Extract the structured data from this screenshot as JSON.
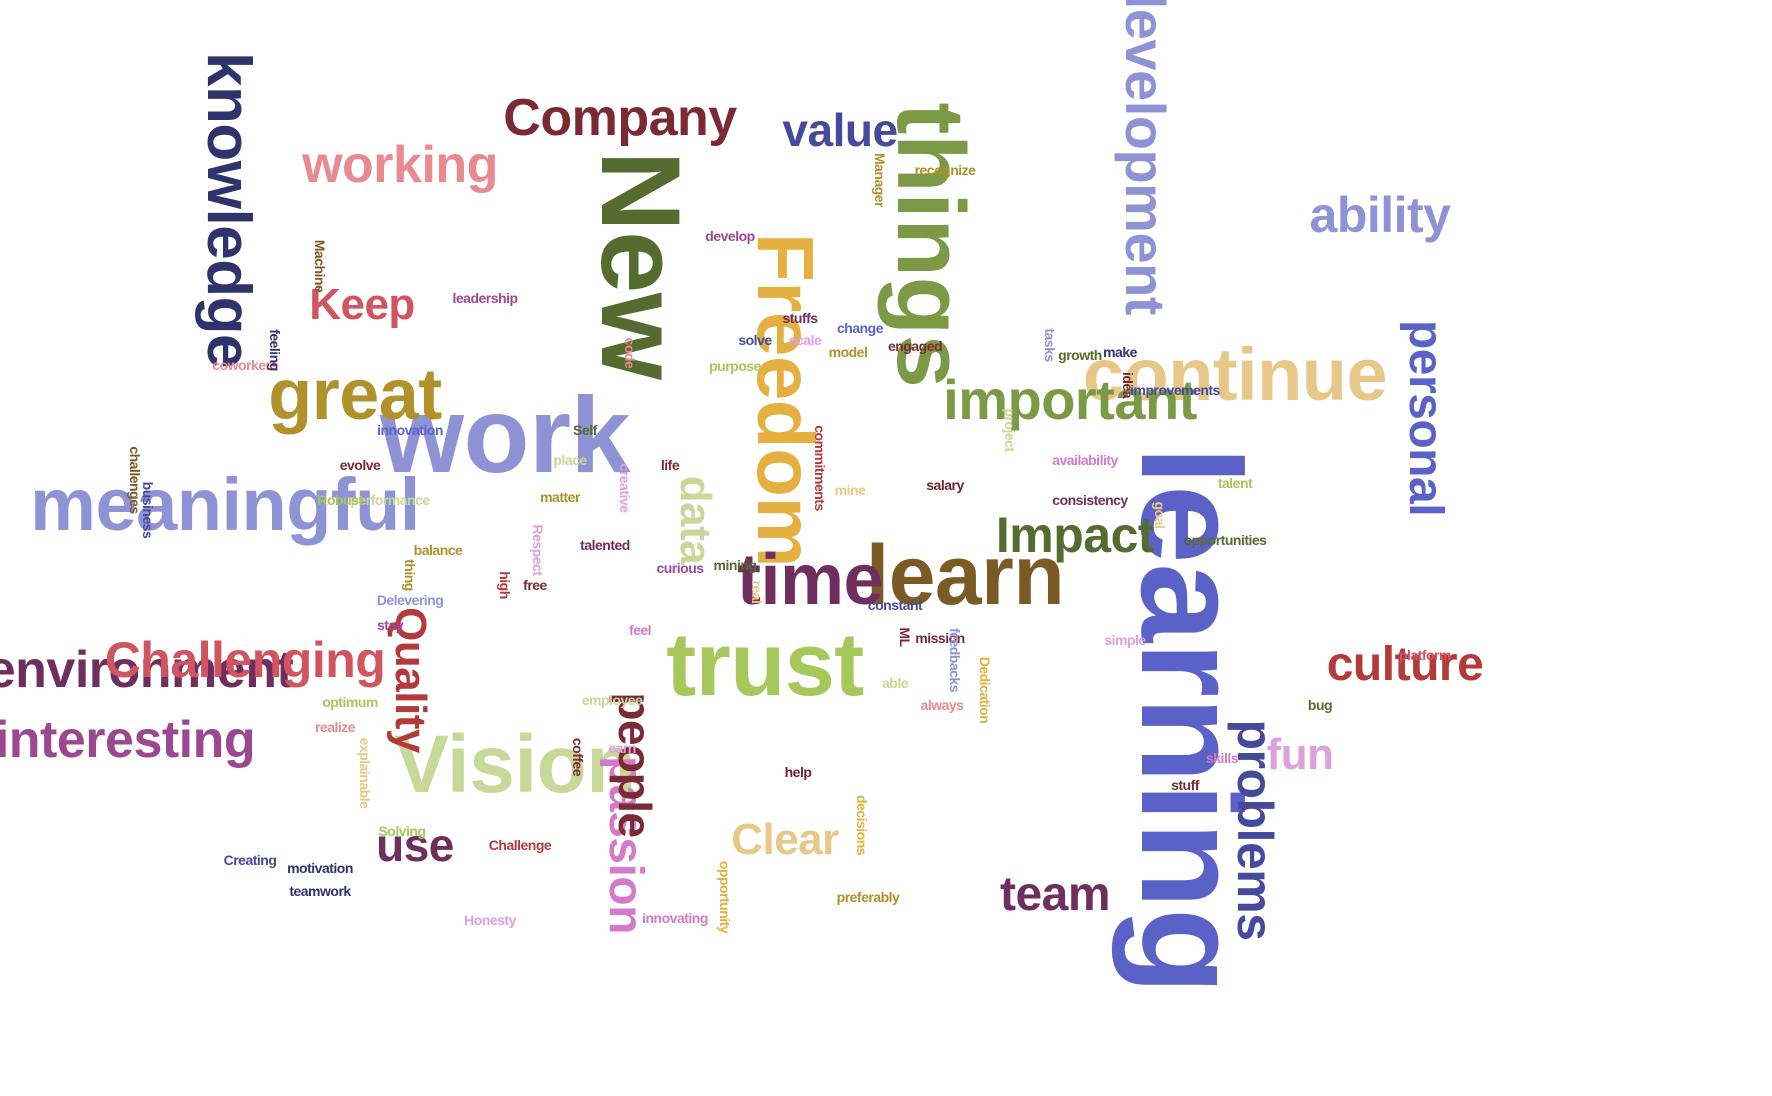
{
  "colors": {
    "background": "#ffffff",
    "navy": "#2f336b",
    "wine": "#7a2a35",
    "olive": "#556b2f",
    "oliveLight": "#7c9a45",
    "green": "#a6c85a",
    "paleGreen": "#c8d898",
    "periwinkle": "#8f93d6",
    "blue": "#5a62c8",
    "indigo": "#464a9a",
    "tan": "#e8c888",
    "gold": "#e5b040",
    "mustard": "#b0912a",
    "brown": "#7c5a25",
    "red": "#d05560",
    "pink": "#e88a90",
    "plum": "#6e2f5e",
    "magenta": "#9c4890",
    "orchid": "#d47ac8",
    "lilac": "#e0a0dc",
    "crimson": "#b23a3a",
    "darkMaroon": "#6b2430"
  },
  "words": [
    {
      "text": "learning",
      "color": "#5a62c8"
    },
    {
      "text": "New",
      "color": "#556b2f"
    },
    {
      "text": "work",
      "color": "#8f93d6"
    },
    {
      "text": "things",
      "color": "#7c9a45"
    },
    {
      "text": "Freedom",
      "color": "#e5b040"
    },
    {
      "text": "learn",
      "color": "#7c5a25"
    },
    {
      "text": "trust",
      "color": "#a6c85a"
    },
    {
      "text": "Vision",
      "color": "#c8d898"
    },
    {
      "text": "time",
      "color": "#6e2f5e"
    },
    {
      "text": "meaningful",
      "color": "#8f93d6"
    },
    {
      "text": "continue",
      "color": "#e8c888"
    },
    {
      "text": "important",
      "color": "#7c9a45"
    },
    {
      "text": "great",
      "color": "#b0912a"
    },
    {
      "text": "development",
      "color": "#8f93d6"
    },
    {
      "text": "knowledge",
      "color": "#2f336b"
    },
    {
      "text": "Company",
      "color": "#7a2a35"
    },
    {
      "text": "working",
      "color": "#e88a90"
    },
    {
      "text": "environment",
      "color": "#6e2f5e"
    },
    {
      "text": "interesting",
      "color": "#9c4890"
    },
    {
      "text": "Challenging",
      "color": "#d05560"
    },
    {
      "text": "Impact",
      "color": "#556b2f"
    },
    {
      "text": "problems",
      "color": "#464a9a"
    },
    {
      "text": "personal",
      "color": "#5a62c8"
    },
    {
      "text": "culture",
      "color": "#b23a3a"
    },
    {
      "text": "ability",
      "color": "#8f93d6"
    },
    {
      "text": "passion",
      "color": "#d47ac8"
    },
    {
      "text": "people",
      "color": "#7a2a35"
    },
    {
      "text": "Quality",
      "color": "#b23a3a"
    },
    {
      "text": "Clear",
      "color": "#e8c888"
    },
    {
      "text": "data",
      "color": "#c8d898"
    },
    {
      "text": "team",
      "color": "#6e2f5e"
    },
    {
      "text": "value",
      "color": "#464a9a"
    },
    {
      "text": "Keep",
      "color": "#d05560"
    },
    {
      "text": "use",
      "color": "#6e2f5e"
    },
    {
      "text": "fun",
      "color": "#e0a0dc"
    },
    {
      "text": "Manager",
      "color": "#b0912a"
    },
    {
      "text": "recognize",
      "color": "#b0912a"
    },
    {
      "text": "develop",
      "color": "#9c4890"
    },
    {
      "text": "Machine",
      "color": "#7c5a25"
    },
    {
      "text": "leadership",
      "color": "#9c4890"
    },
    {
      "text": "stuffs",
      "color": "#6e2f5e"
    },
    {
      "text": "scale",
      "color": "#e0a0dc"
    },
    {
      "text": "change",
      "color": "#5a62c8"
    },
    {
      "text": "engaged",
      "color": "#7a2a35"
    },
    {
      "text": "solve",
      "color": "#464a9a"
    },
    {
      "text": "code",
      "color": "#e88a90"
    },
    {
      "text": "purpose",
      "color": "#a6c85a"
    },
    {
      "text": "model",
      "color": "#b0912a"
    },
    {
      "text": "tasks",
      "color": "#8f93d6"
    },
    {
      "text": "growth",
      "color": "#556b2f"
    },
    {
      "text": "make",
      "color": "#2f336b"
    },
    {
      "text": "improvements",
      "color": "#464a9a"
    },
    {
      "text": "idea",
      "color": "#7a2a35"
    },
    {
      "text": "coworkers",
      "color": "#e88a90"
    },
    {
      "text": "feeling",
      "color": "#2f336b"
    },
    {
      "text": "innovation",
      "color": "#5a62c8"
    },
    {
      "text": "Self",
      "color": "#556b2f"
    },
    {
      "text": "project",
      "color": "#c8d898"
    },
    {
      "text": "availability",
      "color": "#d47ac8"
    },
    {
      "text": "challenges",
      "color": "#7c5a25"
    },
    {
      "text": "evolve",
      "color": "#7a2a35"
    },
    {
      "text": "place",
      "color": "#c8d898"
    },
    {
      "text": "life",
      "color": "#7a2a35"
    },
    {
      "text": "commitments",
      "color": "#b23a3a"
    },
    {
      "text": "salary",
      "color": "#6b2430"
    },
    {
      "text": "consistency",
      "color": "#6e2f5e"
    },
    {
      "text": "talent",
      "color": "#a6c85a"
    },
    {
      "text": "business",
      "color": "#464a9a"
    },
    {
      "text": "performance",
      "color": "#c8d898"
    },
    {
      "text": "Robust",
      "color": "#a6c85a"
    },
    {
      "text": "matter",
      "color": "#b0912a"
    },
    {
      "text": "creative",
      "color": "#e0a0dc"
    },
    {
      "text": "mine",
      "color": "#e8c888"
    },
    {
      "text": "goal",
      "color": "#e8c888"
    },
    {
      "text": "opportunities",
      "color": "#556b2f"
    },
    {
      "text": "Respect",
      "color": "#e0a0dc"
    },
    {
      "text": "talented",
      "color": "#6e2f5e"
    },
    {
      "text": "balance",
      "color": "#b0912a"
    },
    {
      "text": "thing",
      "color": "#b0912a"
    },
    {
      "text": "curious",
      "color": "#9c4890"
    },
    {
      "text": "mining",
      "color": "#556b2f"
    },
    {
      "text": "high",
      "color": "#b23a3a"
    },
    {
      "text": "free",
      "color": "#7a2a35"
    },
    {
      "text": "Delevering",
      "color": "#8f93d6"
    },
    {
      "text": "real",
      "color": "#e8c888"
    },
    {
      "text": "constant",
      "color": "#464a9a"
    },
    {
      "text": "stay",
      "color": "#9c4890"
    },
    {
      "text": "feel",
      "color": "#d47ac8"
    },
    {
      "text": "ML",
      "color": "#7a2a35"
    },
    {
      "text": "mission",
      "color": "#7a2a35"
    },
    {
      "text": "simple",
      "color": "#e0a0dc"
    },
    {
      "text": "platform",
      "color": "#d05560"
    },
    {
      "text": "feedbacks",
      "color": "#8f93d6"
    },
    {
      "text": "able",
      "color": "#c8d898"
    },
    {
      "text": "always",
      "color": "#e88a90"
    },
    {
      "text": "optimum",
      "color": "#a6c85a"
    },
    {
      "text": "employee",
      "color": "#c8d898"
    },
    {
      "text": "Dedication",
      "color": "#e5b040"
    },
    {
      "text": "bug",
      "color": "#556b2f"
    },
    {
      "text": "realize",
      "color": "#e88a90"
    },
    {
      "text": "explainable",
      "color": "#e8c888"
    },
    {
      "text": "earn",
      "color": "#e0a0dc"
    },
    {
      "text": "coffee",
      "color": "#7a2a35"
    },
    {
      "text": "help",
      "color": "#6b2430"
    },
    {
      "text": "skills",
      "color": "#d47ac8"
    },
    {
      "text": "stuff",
      "color": "#7a2a35"
    },
    {
      "text": "Solving",
      "color": "#a6c85a"
    },
    {
      "text": "decisions",
      "color": "#e5b040"
    },
    {
      "text": "Challenge",
      "color": "#b23a3a"
    },
    {
      "text": "Creating",
      "color": "#464a9a"
    },
    {
      "text": "motivation",
      "color": "#2f336b"
    },
    {
      "text": "teamwork",
      "color": "#2f336b"
    },
    {
      "text": "opportunity",
      "color": "#e5b040"
    },
    {
      "text": "preferably",
      "color": "#b0912a"
    },
    {
      "text": "Honesty",
      "color": "#e0a0dc"
    },
    {
      "text": "innovating",
      "color": "#d47ac8"
    }
  ]
}
